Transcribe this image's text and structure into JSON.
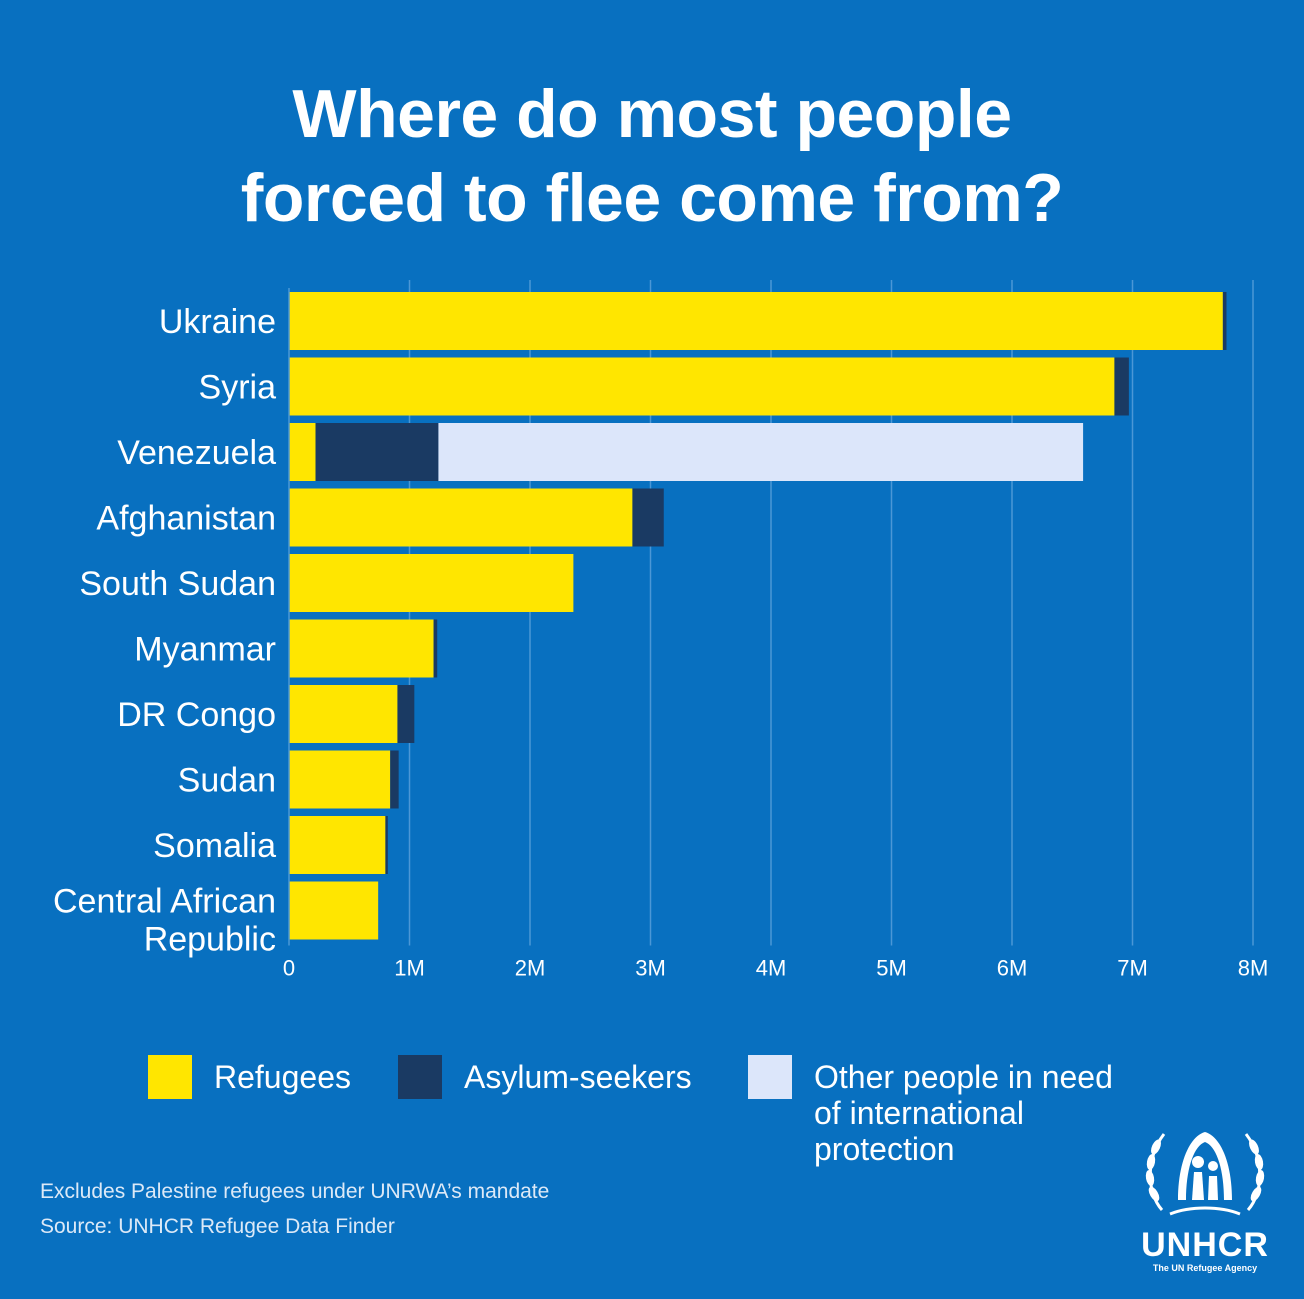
{
  "title_lines": [
    "Where do most people",
    "forced to flee come from?"
  ],
  "chart_data": {
    "type": "bar",
    "orientation": "horizontal",
    "stacked": true,
    "categories": [
      "Ukraine",
      "Syria",
      "Venezuela",
      "Afghanistan",
      "South Sudan",
      "Myanmar",
      "DR Congo",
      "Sudan",
      "Somalia",
      "Central African Republic"
    ],
    "series": [
      {
        "name": "Refugees",
        "color": "#ffe600",
        "values": [
          7.75,
          6.85,
          0.22,
          2.85,
          2.36,
          1.2,
          0.9,
          0.84,
          0.8,
          0.74
        ]
      },
      {
        "name": "Asylum-seekers",
        "color": "#1a3a63",
        "values": [
          0.03,
          0.12,
          1.02,
          0.26,
          0.0,
          0.03,
          0.14,
          0.07,
          0.02,
          0.0
        ]
      },
      {
        "name": "Other people in need of international protection",
        "color": "#dce6fa",
        "values": [
          0,
          0,
          5.35,
          0,
          0,
          0,
          0,
          0,
          0,
          0
        ]
      }
    ],
    "x_ticks": [
      "0",
      "1M",
      "2M",
      "3M",
      "4M",
      "5M",
      "6M",
      "7M",
      "8M"
    ],
    "xlim": [
      0,
      8
    ],
    "units": "millions",
    "grid": true,
    "legend_position": "bottom"
  },
  "legend": [
    {
      "label": "Refugees",
      "color": "#ffe600"
    },
    {
      "label": "Asylum-seekers",
      "color": "#1a3a63"
    },
    {
      "label_lines": [
        "Other people in need",
        "of international",
        "protection"
      ],
      "color": "#dce6fa"
    }
  ],
  "footnotes": {
    "note": "Excludes Palestine refugees under UNRWA’s mandate",
    "source": "Source: UNHCR Refugee Data Finder"
  },
  "logo": {
    "icon": "unhcr-emblem-icon",
    "wordmark": "UNHCR",
    "tagline": "The UN Refugee Agency"
  }
}
